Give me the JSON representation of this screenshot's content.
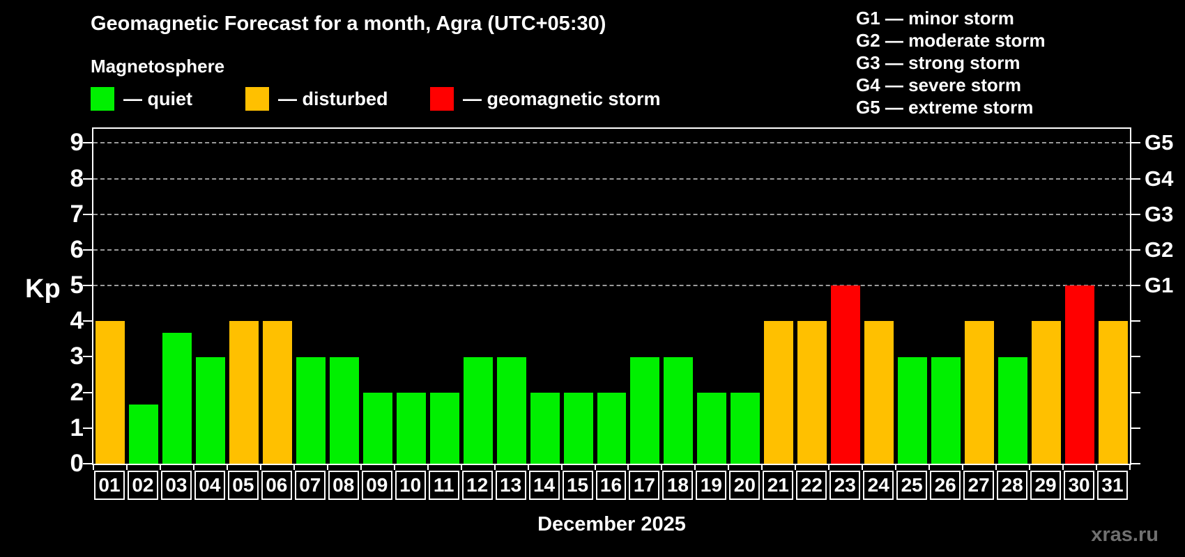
{
  "header": {
    "title": "Geomagnetic Forecast for a month, Agra (UTC+05:30)",
    "subtitle": "Magnetosphere"
  },
  "legend": {
    "items": [
      {
        "status": "quiet",
        "label": "— quiet"
      },
      {
        "status": "disturbed",
        "label": "— disturbed"
      },
      {
        "status": "storm",
        "label": "— geomagnetic storm"
      }
    ]
  },
  "g_legend": {
    "items": [
      {
        "label": "G1 — minor storm"
      },
      {
        "label": "G2 — moderate storm"
      },
      {
        "label": "G3 — strong storm"
      },
      {
        "label": "G4 — severe storm"
      },
      {
        "label": "G5 — extreme storm"
      }
    ]
  },
  "chart_data": {
    "type": "bar",
    "title": "Geomagnetic Forecast for a month, Agra (UTC+05:30)",
    "xlabel": "December 2025",
    "ylabel": "Kp",
    "ylim": [
      0,
      9.4
    ],
    "y_ticks": [
      0,
      1,
      2,
      3,
      4,
      5,
      6,
      7,
      8,
      9
    ],
    "gridlines_kp": [
      5,
      6,
      7,
      8,
      9
    ],
    "grid": "horizontal dashed at storm levels only",
    "legend_position": "top-left",
    "right_axis_labels": [
      {
        "label": "G1",
        "kp": 5
      },
      {
        "label": "G2",
        "kp": 6
      },
      {
        "label": "G3",
        "kp": 7
      },
      {
        "label": "G4",
        "kp": 8
      },
      {
        "label": "G5",
        "kp": 9
      }
    ],
    "colors": {
      "quiet": "#00f000",
      "disturbed": "#ffc000",
      "storm": "#ff0000",
      "background": "#000000",
      "axis": "#ffffff",
      "gridline": "#9b9b9b"
    },
    "categories": [
      "01",
      "02",
      "03",
      "04",
      "05",
      "06",
      "07",
      "08",
      "09",
      "10",
      "11",
      "12",
      "13",
      "14",
      "15",
      "16",
      "17",
      "18",
      "19",
      "20",
      "21",
      "22",
      "23",
      "24",
      "25",
      "26",
      "27",
      "28",
      "29",
      "30",
      "31"
    ],
    "values": [
      4,
      1.67,
      3.67,
      3,
      4,
      4,
      3,
      3,
      2,
      2,
      2,
      3,
      3,
      2,
      2,
      2,
      3,
      3,
      2,
      2,
      4,
      4,
      5,
      4,
      3,
      3,
      4,
      3,
      4,
      5,
      4
    ],
    "statuses": [
      "disturbed",
      "quiet",
      "quiet",
      "quiet",
      "disturbed",
      "disturbed",
      "quiet",
      "quiet",
      "quiet",
      "quiet",
      "quiet",
      "quiet",
      "quiet",
      "quiet",
      "quiet",
      "quiet",
      "quiet",
      "quiet",
      "quiet",
      "quiet",
      "disturbed",
      "disturbed",
      "storm",
      "disturbed",
      "quiet",
      "quiet",
      "disturbed",
      "quiet",
      "disturbed",
      "storm",
      "disturbed"
    ]
  },
  "axis": {
    "kp_title": "Kp",
    "month_label": "December 2025"
  },
  "watermark": {
    "label": "xras.ru"
  }
}
